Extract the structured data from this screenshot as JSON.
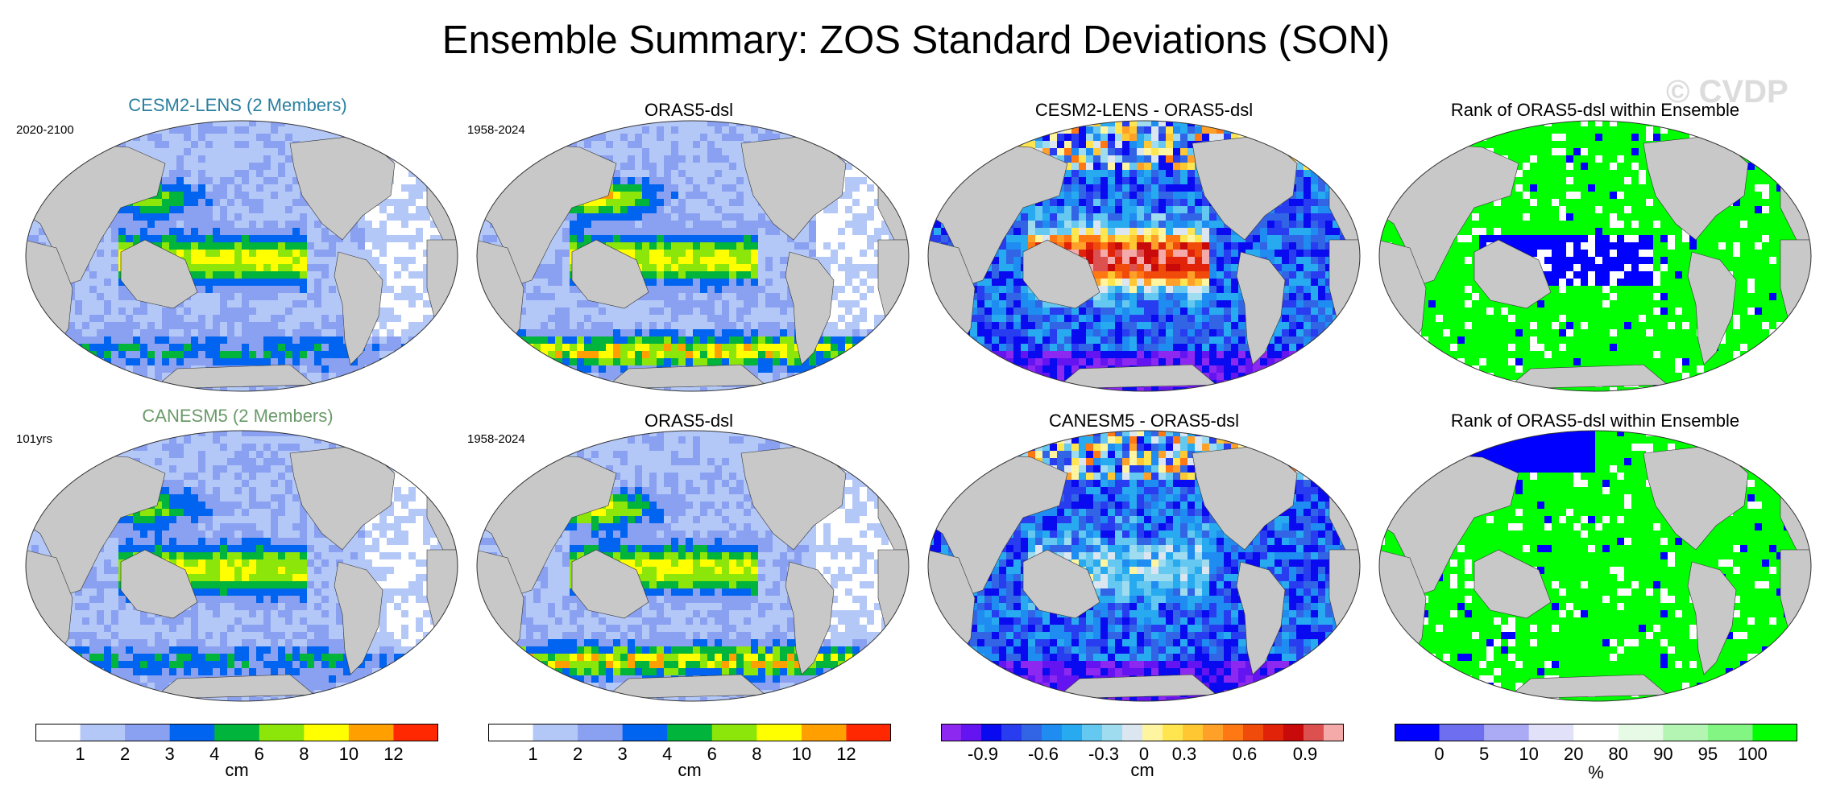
{
  "title": "Ensemble Summary: ZOS Standard Deviations (SON)",
  "watermark": "© CVDP",
  "colors": {
    "land": "#c8c8c8",
    "std_scale": [
      "#ffffff",
      "#b4c8f8",
      "#8aa0f0",
      "#0064f0",
      "#00b43c",
      "#8ce60a",
      "#ffff00",
      "#ffa000",
      "#ff2800"
    ],
    "diff_scale": [
      "#8c28f0",
      "#6414f0",
      "#0a0af0",
      "#283cf0",
      "#3264e6",
      "#1e8cf0",
      "#28aaf0",
      "#64c8f0",
      "#a0dcf0",
      "#dce6f0",
      "#fff5a0",
      "#ffe650",
      "#ffc832",
      "#ffa028",
      "#ff7814",
      "#f04b0a",
      "#e1230a",
      "#c80a0a",
      "#dc5050",
      "#f5aaaa"
    ],
    "rank_scale": [
      "#0000ff",
      "#6e6ef0",
      "#aaaaf5",
      "#e1e1fa",
      "#ffffff",
      "#e6fae6",
      "#b4f5b4",
      "#82f582",
      "#00ff00"
    ]
  },
  "rows": [
    {
      "panels": [
        {
          "title": "CESM2-LENS (2 Members)",
          "title_color": "#2a7fa0",
          "period": "2020-2100",
          "kind": "std"
        },
        {
          "title": "ORAS5-dsl",
          "title_color": "#000000",
          "period": "1958-2024",
          "kind": "std_obs"
        },
        {
          "title": "CESM2-LENS - ORAS5-dsl",
          "title_color": "#000000",
          "period": "",
          "kind": "diff"
        },
        {
          "title": "Rank of ORAS5-dsl within Ensemble",
          "title_color": "#000000",
          "period": "",
          "kind": "rank"
        }
      ]
    },
    {
      "panels": [
        {
          "title": "CANESM5 (2 Members)",
          "title_color": "#6a9a6a",
          "period": "101yrs",
          "kind": "std"
        },
        {
          "title": "ORAS5-dsl",
          "title_color": "#000000",
          "period": "1958-2024",
          "kind": "std_obs"
        },
        {
          "title": "CANESM5 - ORAS5-dsl",
          "title_color": "#000000",
          "period": "",
          "kind": "diff"
        },
        {
          "title": "Rank of ORAS5-dsl within Ensemble",
          "title_color": "#000000",
          "period": "",
          "kind": "rank"
        }
      ]
    }
  ],
  "chart_data": {
    "type": "heatmap",
    "projection": "Robinson (global, Pacific-centred)",
    "colorbars": [
      {
        "units": "cm",
        "ticks": [
          "1",
          "2",
          "3",
          "4",
          "6",
          "8",
          "10",
          "12"
        ],
        "levels": [
          1,
          2,
          3,
          4,
          6,
          8,
          10,
          12
        ]
      },
      {
        "units": "cm",
        "ticks": [
          "1",
          "2",
          "3",
          "4",
          "6",
          "8",
          "10",
          "12"
        ],
        "levels": [
          1,
          2,
          3,
          4,
          6,
          8,
          10,
          12
        ]
      },
      {
        "units": "cm",
        "ticks": [
          "-0.9",
          "-0.6",
          "-0.3",
          "0",
          "0.3",
          "0.6",
          "0.9"
        ],
        "levels": [
          -0.9,
          -0.6,
          -0.3,
          0,
          0.3,
          0.6,
          0.9
        ]
      },
      {
        "units": "%",
        "ticks": [
          "0",
          "5",
          "10",
          "20",
          "80",
          "90",
          "95",
          "100"
        ],
        "levels": [
          0,
          5,
          10,
          20,
          80,
          90,
          95,
          100
        ]
      }
    ]
  }
}
